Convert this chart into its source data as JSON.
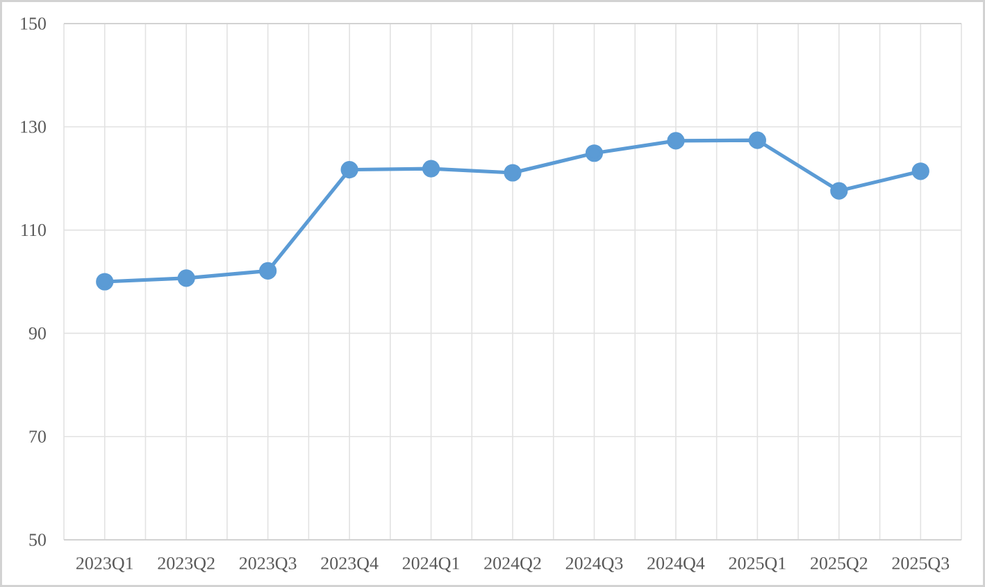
{
  "chart_data": {
    "type": "line",
    "categories": [
      "2023Q1",
      "2023Q2",
      "2023Q3",
      "2023Q4",
      "2024Q1",
      "2024Q2",
      "2024Q3",
      "2024Q4",
      "2025Q1",
      "2025Q2",
      "2025Q3"
    ],
    "series": [
      {
        "color": "#5b9bd5",
        "values": [
          100.0,
          100.7,
          102.1,
          121.7,
          121.9,
          121.1,
          124.9,
          127.3,
          127.4,
          117.6,
          121.4
        ]
      }
    ],
    "ylim": [
      50,
      150
    ],
    "yticks": [
      50,
      70,
      90,
      110,
      130,
      150
    ],
    "grid": true,
    "marker": "circle",
    "line_style": "solid"
  }
}
